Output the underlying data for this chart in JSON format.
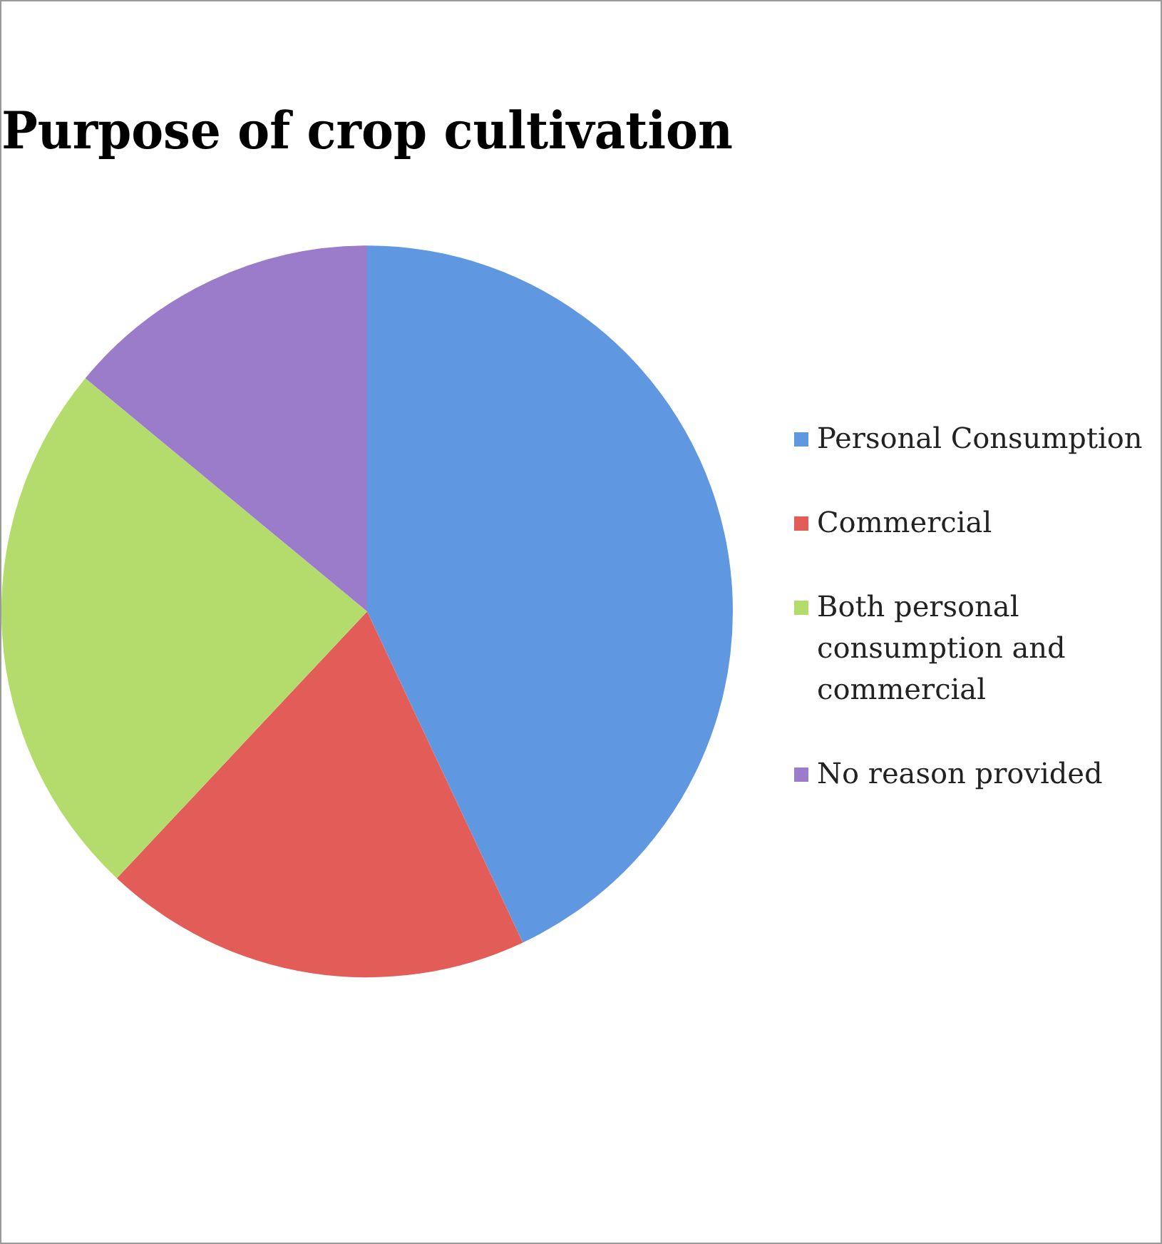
{
  "chart_data": {
    "type": "pie",
    "title": "Purpose of crop cultivation",
    "categories": [
      "Personal Consumption",
      "Commercial",
      "Both personal consumption and commercial",
      "No reason provided"
    ],
    "values": [
      43,
      19,
      24,
      14
    ],
    "colors": [
      "#5f97e0",
      "#e35d58",
      "#b3dc6c",
      "#9a7ccb"
    ],
    "legend": "right"
  }
}
